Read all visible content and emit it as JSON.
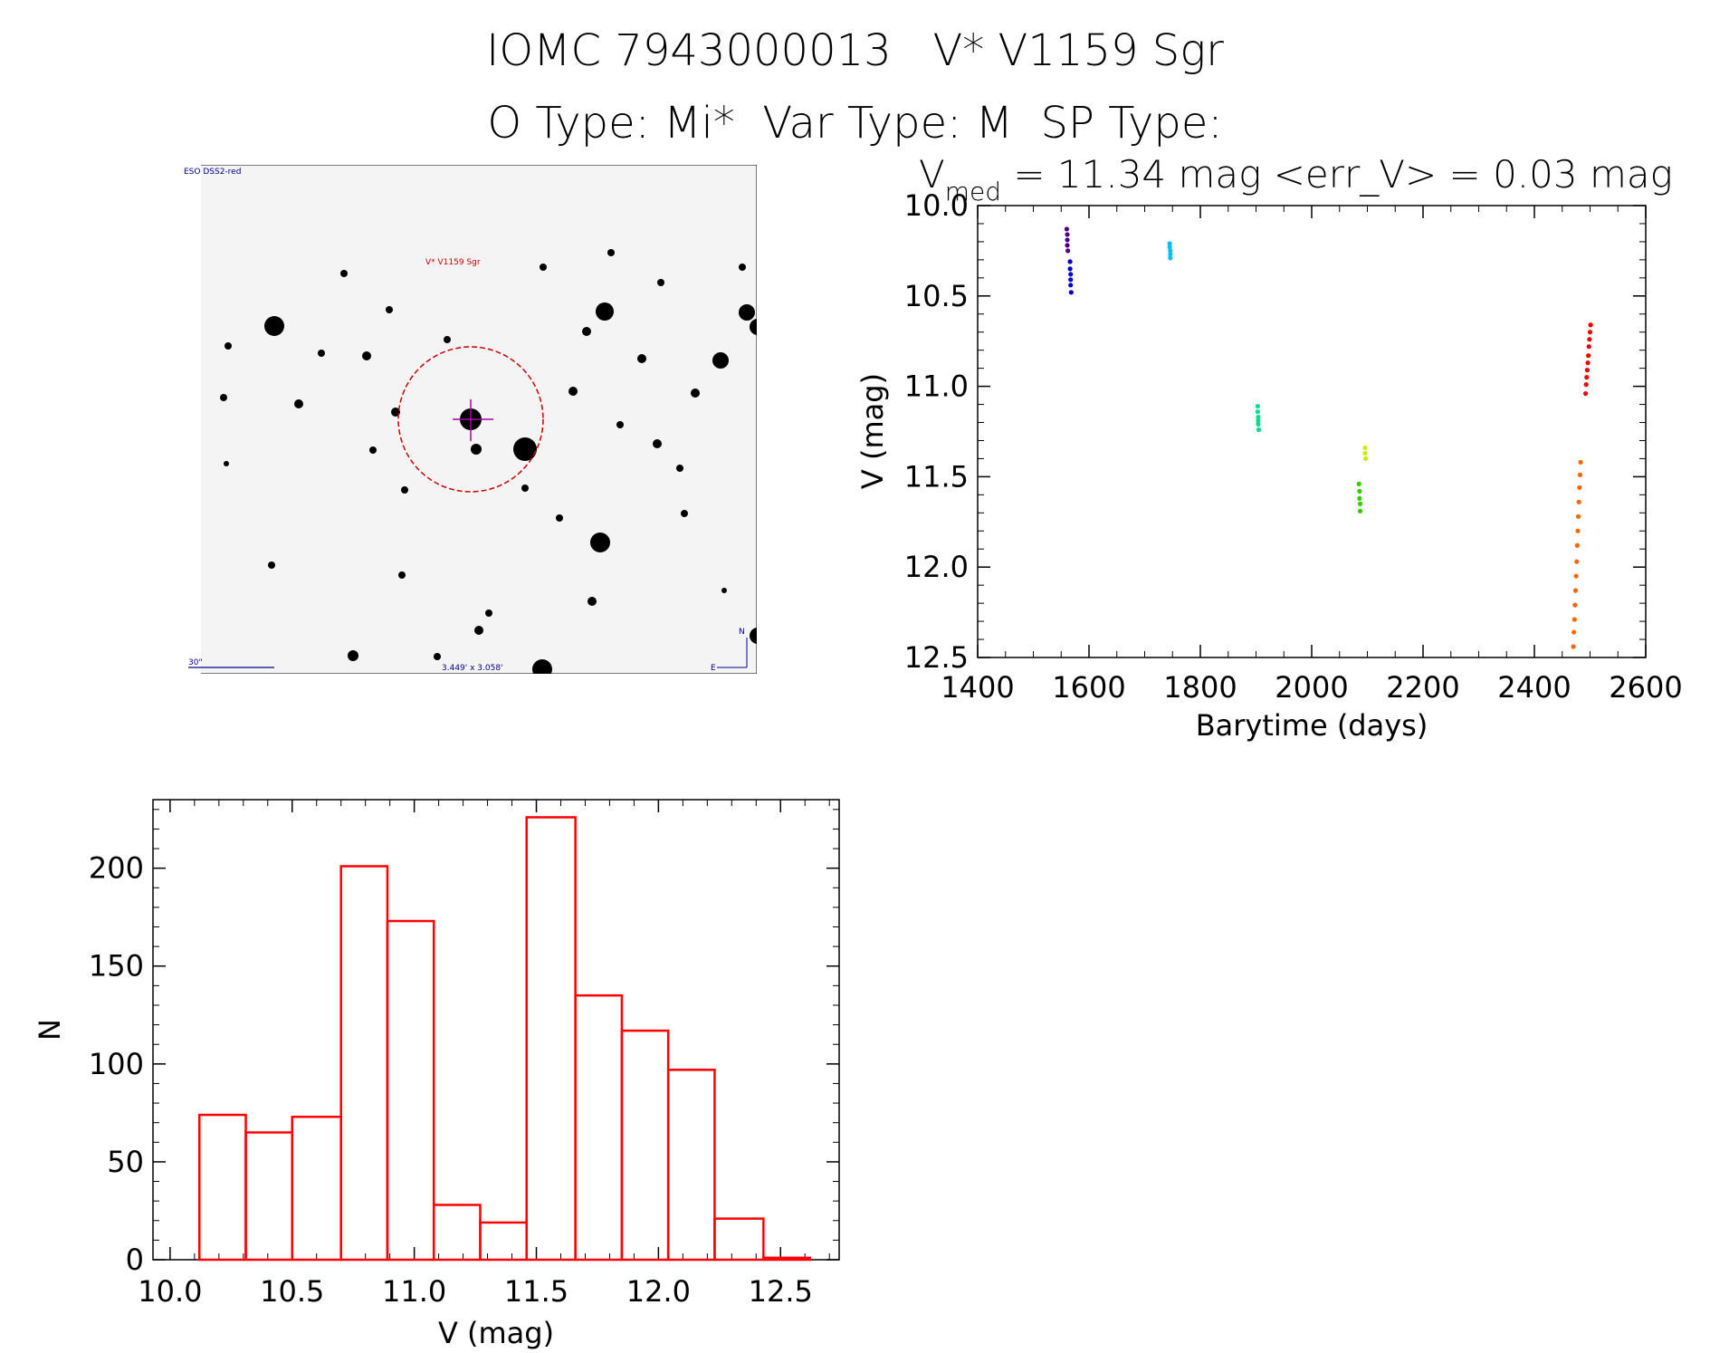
{
  "header": {
    "title_line1": "IOMC 7943000013   V* V1159 Sgr",
    "title_line2": "O Type: Mi*  Var Type: M  SP Type:"
  },
  "sky_image": {
    "survey_label": "ESO DSS2-red",
    "object_label": "V* V1159 Sgr",
    "scale_label": "30\"",
    "fov_label": "3.449' x 3.058'",
    "north_label": "N",
    "east_label": "E",
    "marker_color": "#cc0000",
    "overlay_color": "#00008b"
  },
  "chart_data": [
    {
      "type": "scatter",
      "title": "V_med = 11.34 mag <err_V> = 0.03 mag",
      "title_parts": {
        "v": "V",
        "sub": "med",
        "rest": " = 11.34 mag <err_V> = 0.03 mag"
      },
      "xlabel": "Barytime (days)",
      "ylabel": "V (mag)",
      "xlim": [
        1400,
        2600
      ],
      "ylim": [
        10.0,
        12.5
      ],
      "y_inverted": true,
      "xticks": [
        1400,
        1600,
        1800,
        2000,
        2200,
        2400,
        2600
      ],
      "xtick_labels": [
        "1400",
        "1600",
        "1800",
        "2000",
        "2200",
        "2400",
        "2600"
      ],
      "yticks": [
        10.0,
        10.5,
        11.0,
        11.5,
        12.0,
        12.5
      ],
      "ytick_labels": [
        "10.0",
        "10.5",
        "11.0",
        "11.5",
        "12.0",
        "12.5"
      ],
      "series": [
        {
          "color": "#4b0082",
          "x": [
            1560,
            1561,
            1561,
            1561,
            1562
          ],
          "y": [
            10.13,
            10.16,
            10.19,
            10.22,
            10.25
          ]
        },
        {
          "color": "#0000cd",
          "x": [
            1566,
            1566,
            1567,
            1567,
            1567,
            1568
          ],
          "y": [
            10.31,
            10.35,
            10.38,
            10.41,
            10.44,
            10.48
          ]
        },
        {
          "color": "#00bfff",
          "x": [
            1745,
            1745,
            1746,
            1746,
            1746
          ],
          "y": [
            10.21,
            10.23,
            10.25,
            10.27,
            10.29
          ]
        },
        {
          "color": "#00e08a",
          "x": [
            1903,
            1903,
            1904,
            1904,
            1904,
            1905
          ],
          "y": [
            11.11,
            11.14,
            11.17,
            11.19,
            11.21,
            11.24
          ]
        },
        {
          "color": "#33cc00",
          "x": [
            2085,
            2086,
            2086,
            2087,
            2087
          ],
          "y": [
            11.54,
            11.58,
            11.62,
            11.65,
            11.69
          ]
        },
        {
          "color": "#ccee00",
          "x": [
            2096,
            2096,
            2097
          ],
          "y": [
            11.34,
            11.37,
            11.4
          ]
        },
        {
          "color": "#ff6600",
          "x": [
            2470,
            2471,
            2472,
            2473,
            2474,
            2475,
            2476,
            2477,
            2478,
            2479,
            2480,
            2481,
            2482,
            2483
          ],
          "y": [
            12.44,
            12.36,
            12.29,
            12.21,
            12.13,
            12.05,
            11.97,
            11.88,
            11.8,
            11.72,
            11.64,
            11.56,
            11.49,
            11.42
          ]
        },
        {
          "color": "#ee0000",
          "x": [
            2492,
            2493,
            2494,
            2495,
            2496,
            2497,
            2498,
            2499,
            2500,
            2501
          ],
          "y": [
            11.04,
            10.99,
            10.95,
            10.91,
            10.87,
            10.83,
            10.78,
            10.74,
            10.7,
            10.66
          ]
        }
      ]
    },
    {
      "type": "bar",
      "title": "",
      "xlabel": "V (mag)",
      "ylabel": "N",
      "xlim": [
        9.93,
        12.74
      ],
      "ylim": [
        0,
        235
      ],
      "xticks": [
        10.0,
        10.5,
        11.0,
        11.5,
        12.0,
        12.5
      ],
      "xtick_labels": [
        "10.0",
        "10.5",
        "11.0",
        "11.5",
        "12.0",
        "12.5"
      ],
      "yticks": [
        0,
        50,
        100,
        150,
        200
      ],
      "ytick_labels": [
        "0",
        "50",
        "100",
        "150",
        "200"
      ],
      "bar_color": "#ff0000",
      "bin_edges": [
        10.12,
        10.31,
        10.5,
        10.7,
        10.89,
        11.08,
        11.27,
        11.46,
        11.66,
        11.85,
        12.04,
        12.23,
        12.43,
        12.62
      ],
      "values": [
        74,
        65,
        73,
        201,
        173,
        28,
        19,
        226,
        135,
        117,
        97,
        21,
        1
      ]
    }
  ]
}
